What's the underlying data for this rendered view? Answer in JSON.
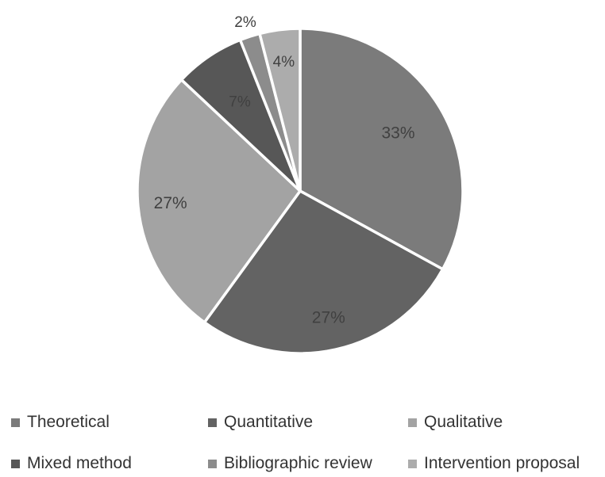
{
  "chart_data": {
    "type": "pie",
    "title": "",
    "slices": [
      {
        "label": "Theoretical",
        "value": 33,
        "data_label": "33%",
        "color": "#7b7b7b"
      },
      {
        "label": "Quantitative",
        "value": 27,
        "data_label": "27%",
        "color": "#636363"
      },
      {
        "label": "Qualitative",
        "value": 27,
        "data_label": "27%",
        "color": "#a3a3a3"
      },
      {
        "label": "Mixed method",
        "value": 7,
        "data_label": "7%",
        "color": "#575757"
      },
      {
        "label": "Bibliographic review",
        "value": 2,
        "data_label": "2%",
        "color": "#8c8c8c"
      },
      {
        "label": "Intervention proposal",
        "value": 4,
        "data_label": "4%",
        "color": "#acacac"
      }
    ],
    "start_angle": "12 o'clock",
    "direction": "clockwise",
    "legend_position": "bottom",
    "label_color": "#404040"
  }
}
